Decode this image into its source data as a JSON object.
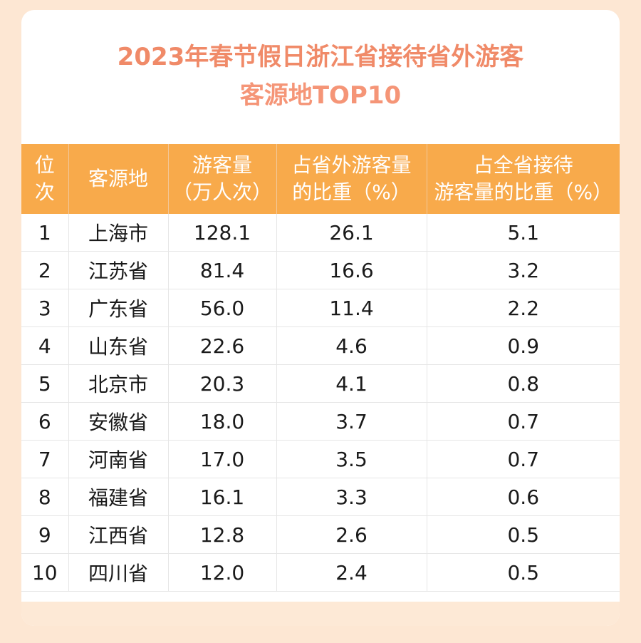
{
  "chart_data": {
    "type": "table",
    "title_line1": "2023年春节假日浙江省接待省外游客",
    "title_line2": "客源地TOP10",
    "columns": [
      [
        "位",
        "次"
      ],
      [
        "客源地"
      ],
      [
        "游客量",
        "（万人次）"
      ],
      [
        "占省外游客量",
        "的比重（%）"
      ],
      [
        "占全省接待",
        "游客量的比重（%）"
      ]
    ],
    "rows": [
      [
        "1",
        "上海市",
        "128.1",
        "26.1",
        "5.1"
      ],
      [
        "2",
        "江苏省",
        "81.4",
        "16.6",
        "3.2"
      ],
      [
        "3",
        "广东省",
        "56.0",
        "11.4",
        "2.2"
      ],
      [
        "4",
        "山东省",
        "22.6",
        "4.6",
        "0.9"
      ],
      [
        "5",
        "北京市",
        "20.3",
        "4.1",
        "0.8"
      ],
      [
        "6",
        "安徽省",
        "18.0",
        "3.7",
        "0.7"
      ],
      [
        "7",
        "河南省",
        "17.0",
        "3.5",
        "0.7"
      ],
      [
        "8",
        "福建省",
        "16.1",
        "3.3",
        "0.6"
      ],
      [
        "9",
        "江西省",
        "12.8",
        "2.6",
        "0.5"
      ],
      [
        "10",
        "四川省",
        "12.0",
        "2.4",
        "0.5"
      ]
    ]
  },
  "colors": {
    "title": "#f08a68",
    "header_bg": "#f8aa4b",
    "page_bg": "#fde7d3"
  }
}
